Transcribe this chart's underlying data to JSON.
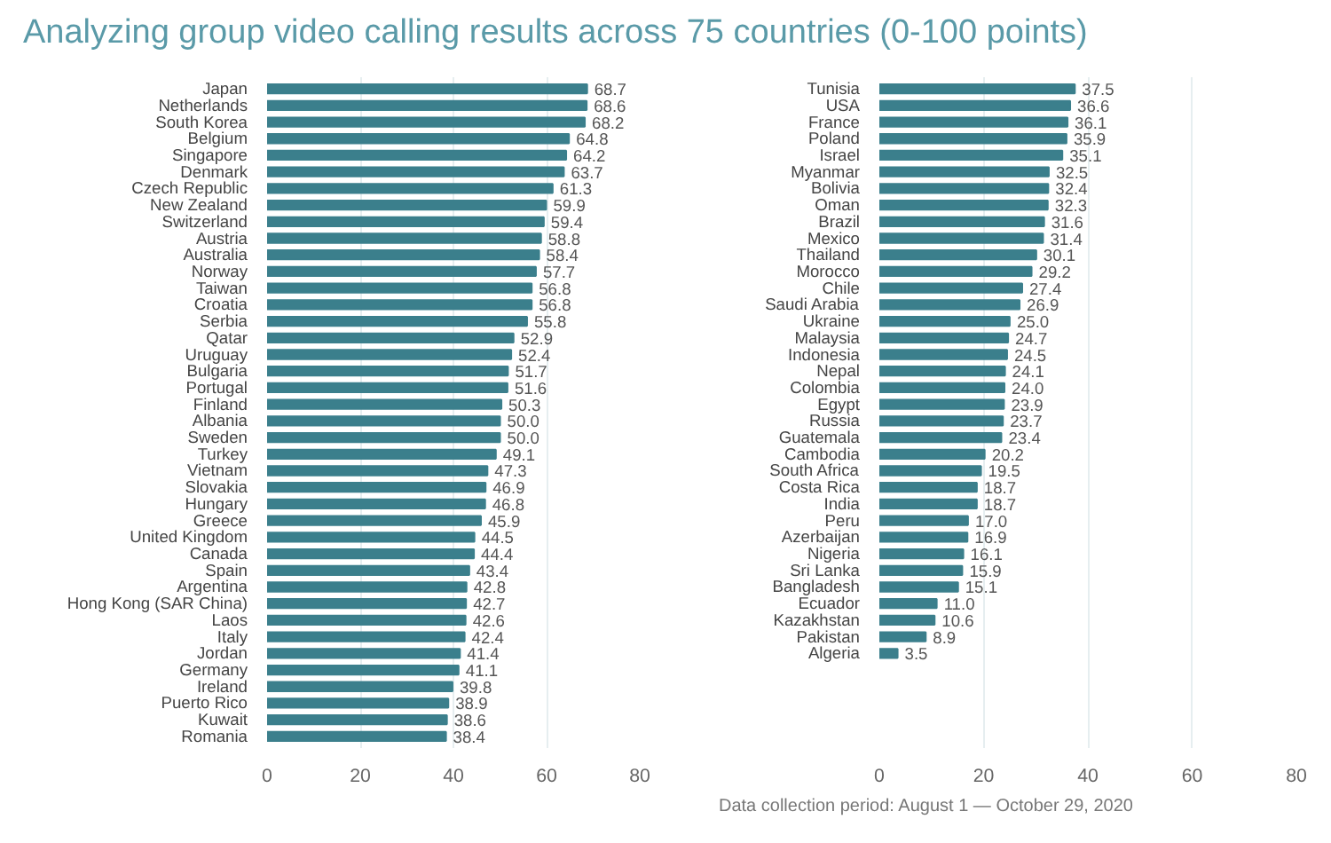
{
  "chart_data": [
    {
      "type": "bar",
      "orientation": "horizontal",
      "title": "Analyzing group video calling results across 75 countries (0-100 points)",
      "categories": [
        "Japan",
        "Netherlands",
        "South Korea",
        "Belgium",
        "Singapore",
        "Denmark",
        "Czech Republic",
        "New Zealand",
        "Switzerland",
        "Austria",
        "Australia",
        "Norway",
        "Taiwan",
        "Croatia",
        "Serbia",
        "Qatar",
        "Uruguay",
        "Bulgaria",
        "Portugal",
        "Finland",
        "Albania",
        "Sweden",
        "Turkey",
        "Vietnam",
        "Slovakia",
        "Hungary",
        "Greece",
        "United Kingdom",
        "Canada",
        "Spain",
        "Argentina",
        "Hong Kong (SAR China)",
        "Laos",
        "Italy",
        "Jordan",
        "Germany",
        "Ireland",
        "Puerto Rico",
        "Kuwait",
        "Romania"
      ],
      "values": [
        68.7,
        68.6,
        68.2,
        64.8,
        64.2,
        63.7,
        61.3,
        59.9,
        59.4,
        58.8,
        58.4,
        57.7,
        56.8,
        56.8,
        55.8,
        52.9,
        52.4,
        51.7,
        51.6,
        50.3,
        50.0,
        50.0,
        49.1,
        47.3,
        46.9,
        46.8,
        45.9,
        44.5,
        44.4,
        43.4,
        42.8,
        42.7,
        42.6,
        42.4,
        41.4,
        41.1,
        39.8,
        38.9,
        38.6,
        38.4
      ],
      "value_labels": [
        "68.7",
        "68.6",
        "68.2",
        "64.8",
        "64.2",
        "63.7",
        "61.3",
        "59.9",
        "59.4",
        "58.8",
        "58.4",
        "57.7",
        "56.8",
        "56.8",
        "55.8",
        "52.9",
        "52.4",
        "51.7",
        "51.6",
        "50.3",
        "50.0",
        "50.0",
        "49.1",
        "47.3",
        "46.9",
        "46.8",
        "45.9",
        "44.5",
        "44.4",
        "43.4",
        "42.8",
        "42.7",
        "42.6",
        "42.4",
        "41.4",
        "41.1",
        "39.8",
        "38.9",
        "38.6",
        "38.4"
      ],
      "color": "#3b7f8c",
      "xlim": [
        0,
        80
      ],
      "xticks": [
        0,
        20,
        40,
        60,
        80
      ],
      "grid": "x"
    },
    {
      "type": "bar",
      "orientation": "horizontal",
      "categories": [
        "Tunisia",
        "USA",
        "France",
        "Poland",
        "Israel",
        "Myanmar",
        "Bolivia",
        "Oman",
        "Brazil",
        "Mexico",
        "Thailand",
        "Morocco",
        "Chile",
        "Saudi Arabia",
        "Ukraine",
        "Malaysia",
        "Indonesia",
        "Nepal",
        "Colombia",
        "Egypt",
        "Russia",
        "Guatemala",
        "Cambodia",
        "South Africa",
        "Costa Rica",
        "India",
        "Peru",
        "Azerbaijan",
        "Nigeria",
        "Sri Lanka",
        "Bangladesh",
        "Ecuador",
        "Kazakhstan",
        "Pakistan",
        "Algeria"
      ],
      "values": [
        37.5,
        36.6,
        36.1,
        35.9,
        35.1,
        32.5,
        32.4,
        32.3,
        31.6,
        31.4,
        30.1,
        29.2,
        27.4,
        26.9,
        25.0,
        24.7,
        24.5,
        24.1,
        24.0,
        23.9,
        23.7,
        23.4,
        20.2,
        19.5,
        18.7,
        18.7,
        17.0,
        16.9,
        16.1,
        15.9,
        15.1,
        11.0,
        10.6,
        8.9,
        3.5
      ],
      "value_labels": [
        "37.5",
        "36.6",
        "36.1",
        "35.9",
        "35.1",
        "32.5",
        "32.4",
        "32.3",
        "31.6",
        "31.4",
        "30.1",
        "29.2",
        "27.4",
        "26.9",
        "25.0",
        "24.7",
        "24.5",
        "24.1",
        "24.0",
        "23.9",
        "23.7",
        "23.4",
        "20.2",
        "19.5",
        "18.7",
        "18.7",
        "17.0",
        "16.9",
        "16.1",
        "15.9",
        "15.1",
        "11.0",
        "10.6",
        "8.9",
        "3.5"
      ],
      "color": "#3b7f8c",
      "xlim": [
        0,
        80
      ],
      "xticks": [
        0,
        20,
        40,
        60,
        80
      ],
      "grid": "x",
      "annotations": [
        "Data collection period: August 1 — October 29, 2020"
      ]
    }
  ]
}
